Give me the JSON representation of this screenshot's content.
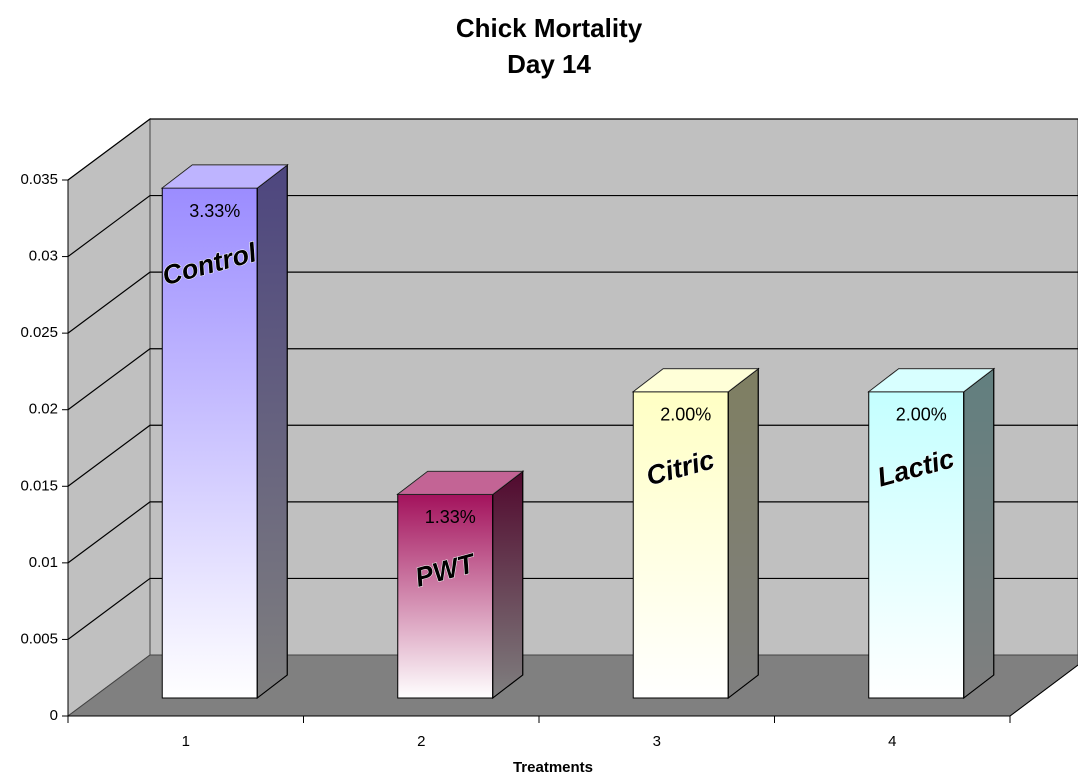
{
  "chart_data": {
    "type": "bar3d",
    "title": "Chick Mortality",
    "subtitle": "Day 14",
    "x_label": "Treatments",
    "categories": [
      "1",
      "2",
      "3",
      "4"
    ],
    "values": [
      0.0333,
      0.0133,
      0.02,
      0.02
    ],
    "value_labels": [
      "3.33%",
      "1.33%",
      "2.00%",
      "2.00%"
    ],
    "bar_labels": [
      "Control",
      "PWT",
      "Citric",
      "Lactic"
    ],
    "colors": [
      "#9b8cff",
      "#a3125c",
      "#ffffc4",
      "#c4ffff"
    ],
    "ylim": [
      0,
      0.035
    ],
    "yticks": [
      0,
      0.005,
      0.01,
      0.015,
      0.02,
      0.025,
      0.03,
      0.035
    ],
    "grid": true
  }
}
